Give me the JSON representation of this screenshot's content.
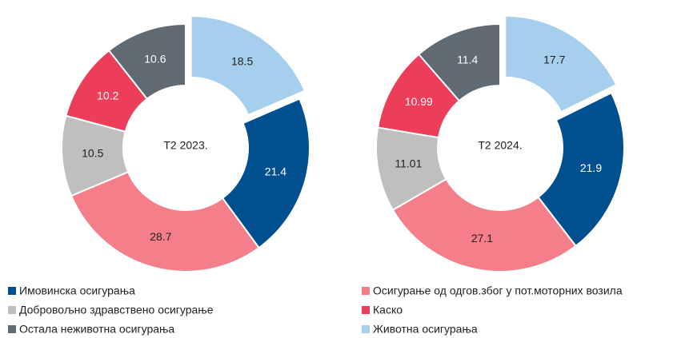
{
  "categories": [
    "Имовинска осигурања",
    "Осигурање од одгов.због у пот.моторних возила",
    "Добровољно здравствено осигурање",
    "Каско",
    "Остала неживотна осигурања",
    "Животна осигурања"
  ],
  "colors": [
    "#00508f",
    "#f47f8b",
    "#bfbfbf",
    "#ec3d5a",
    "#5f6a72",
    "#a5cfec"
  ],
  "chart_data": [
    {
      "type": "pie",
      "title": "T2 2023.",
      "values": [
        21.4,
        28.7,
        10.5,
        10.2,
        10.6,
        18.5
      ]
    },
    {
      "type": "pie",
      "title": "T2 2024.",
      "values": [
        21.9,
        27.1,
        11.01,
        10.99,
        11.4,
        17.7
      ]
    }
  ]
}
